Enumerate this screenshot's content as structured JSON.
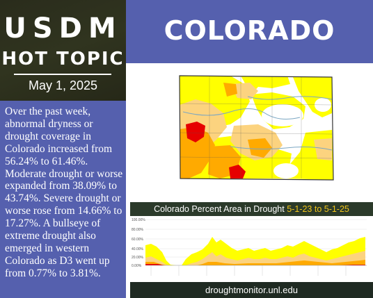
{
  "header": {
    "logo_text": "USDM",
    "subtitle": "HOT TOPIC",
    "date": "May 1, 2025",
    "state": "COLORADO"
  },
  "summary": "Over the past week, abnormal dryness or drought coverage in Colorado increased from 56.24% to 61.46%. Moderate drought or worse expanded from 38.09% to 43.74%. Severe drought or worse rose from 14.66% to 17.27%. A bullseye of extreme drought also emerged in western Colorado as D3 went up from 0.77% to 3.81%.",
  "chart": {
    "title": "Colorado Percent Area in Drought",
    "range": "5-1-23 to 5-1-25",
    "y_ticks": [
      "100.00%",
      "80.00%",
      "60.00%",
      "40.00%",
      "20.00%",
      "0.00%"
    ]
  },
  "map": {
    "colors": {
      "D0": "#ffff00",
      "D1": "#fcd37f",
      "D2": "#ffaa00",
      "D3": "#e60000",
      "none": "#ffffff",
      "border": "#333333",
      "rivers": "#7aa6c2"
    }
  },
  "footer": {
    "url": "droughtmonitor.unl.edu"
  },
  "colors": {
    "band": "#5560ae",
    "dark": "#2c2f1f",
    "accent": "#f0c419"
  }
}
